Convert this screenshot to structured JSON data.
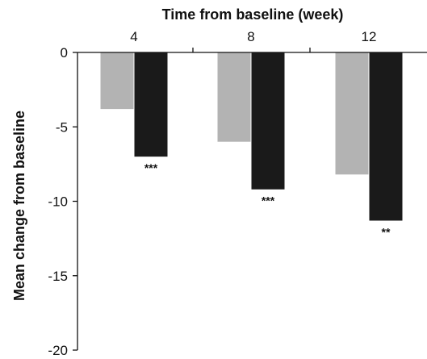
{
  "chart_data": {
    "type": "bar",
    "xlabel": "Time from baseline (week)",
    "ylabel": "Mean change from baseline",
    "categories": [
      "4",
      "8",
      "12"
    ],
    "series": [
      {
        "values": [
          -3.8,
          -6.0,
          -8.2
        ],
        "color": "#b3b3b3"
      },
      {
        "values": [
          -7.0,
          -9.2,
          -11.3
        ],
        "color": "#1a1a1a"
      }
    ],
    "annotations": [
      "***",
      "***",
      "**"
    ],
    "ylim": [
      -20,
      0
    ],
    "yticks": [
      0,
      -5,
      -10,
      -15,
      -20
    ],
    "x_axis_position": "top",
    "grid": false,
    "legend": "none"
  }
}
